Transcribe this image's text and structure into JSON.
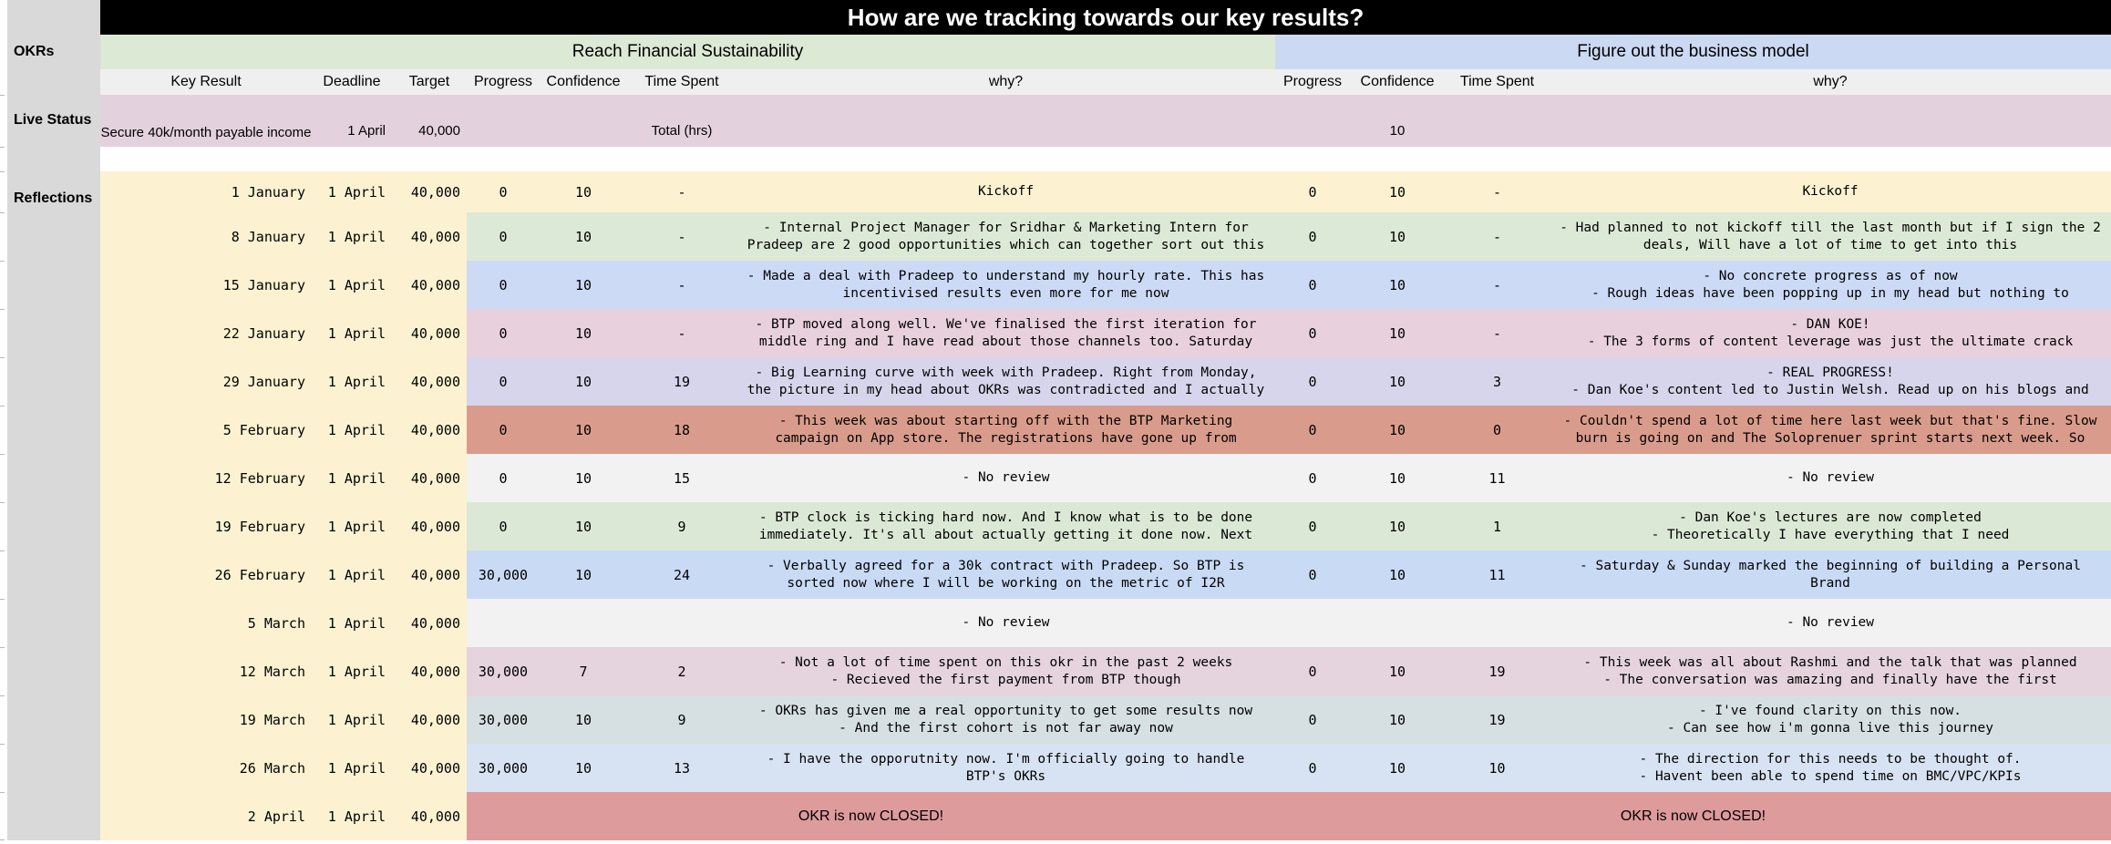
{
  "title": "How are we tracking towards our key results?",
  "sidebar": {
    "okrs": "OKRs",
    "live_status": "Live Status",
    "reflections": "Reflections"
  },
  "okrs": [
    {
      "name": "Reach Financial Sustainability",
      "color": "#DCE9D5"
    },
    {
      "name": "Figure out the business model",
      "color": "#CCD9F2"
    }
  ],
  "left_columns": {
    "key_result": "Key Result",
    "deadline": "Deadline",
    "target": "Target"
  },
  "okr_columns": {
    "progress": "Progress",
    "confidence": "Confidence",
    "time_spent": "Time Spent",
    "why": "why?"
  },
  "live_status": {
    "key_result": "Secure 40k/month payable income",
    "deadline": "1 April",
    "target": "40,000",
    "okr1": {
      "progress": "",
      "confidence": "",
      "time_spent": "Total (hrs)",
      "why": ""
    },
    "okr2": {
      "progress": "",
      "confidence": "10",
      "time_spent": "",
      "why": ""
    }
  },
  "colors": {
    "sidebar": "#D9D9D9",
    "title_bar": "#000000",
    "title_text": "#FFFFFF",
    "header_row": "#EFEFEF",
    "live_row": "#E3D2DD",
    "left_block": "#FCF2D1"
  },
  "reflections": [
    {
      "date": "1 January",
      "deadline": "1 April",
      "target": "40,000",
      "color": "#FCF2D1",
      "okr1": {
        "progress": "0",
        "confidence": "10",
        "time_spent": "-",
        "why": [
          "Kickoff"
        ]
      },
      "okr2": {
        "progress": "0",
        "confidence": "10",
        "time_spent": "-",
        "why": [
          "Kickoff"
        ]
      }
    },
    {
      "date": "8 January",
      "deadline": "1 April",
      "target": "40,000",
      "color": "#DCE9D6",
      "okr1": {
        "progress": "0",
        "confidence": "10",
        "time_spent": "-",
        "why": [
          "- Internal Project Manager for Sridhar & Marketing Intern for",
          "Pradeep are 2 good opportunities which can together sort out this"
        ]
      },
      "okr2": {
        "progress": "0",
        "confidence": "10",
        "time_spent": "-",
        "why": [
          "- Had planned to not kickoff till the last month but if I sign the 2",
          "deals, Will have a lot of time to get into this"
        ]
      }
    },
    {
      "date": "15 January",
      "deadline": "1 April",
      "target": "40,000",
      "color": "#CCDAF5",
      "okr1": {
        "progress": "0",
        "confidence": "10",
        "time_spent": "-",
        "why": [
          "- Made a deal with Pradeep to understand my hourly rate. This has",
          "incentivised results even more for me now"
        ]
      },
      "okr2": {
        "progress": "0",
        "confidence": "10",
        "time_spent": "-",
        "why": [
          "- No concrete progress as of now",
          "- Rough ideas have been popping up in my head but nothing to"
        ]
      }
    },
    {
      "date": "22 January",
      "deadline": "1 April",
      "target": "40,000",
      "color": "#E8D1DC",
      "okr1": {
        "progress": "0",
        "confidence": "10",
        "time_spent": "-",
        "why": [
          "- BTP moved along well. We've finalised the first iteration for",
          "middle ring and I have read about those channels too. Saturday"
        ]
      },
      "okr2": {
        "progress": "0",
        "confidence": "10",
        "time_spent": "-",
        "why": [
          "- DAN KOE!",
          "- The 3 forms of content leverage was just the ultimate crack"
        ]
      }
    },
    {
      "date": "29 January",
      "deadline": "1 April",
      "target": "40,000",
      "color": "#D7D5EC",
      "okr1": {
        "progress": "0",
        "confidence": "10",
        "time_spent": "19",
        "why": [
          "- Big Learning curve with week with Pradeep. Right from Monday,",
          "the picture in my head about OKRs was contradicted and I actually"
        ]
      },
      "okr2": {
        "progress": "0",
        "confidence": "10",
        "time_spent": "3",
        "why": [
          "- REAL PROGRESS!",
          "- Dan Koe's content led to Justin Welsh. Read up on his blogs and"
        ]
      }
    },
    {
      "date": "5 February",
      "deadline": "1 April",
      "target": "40,000",
      "color": "#D99C8C",
      "okr1": {
        "progress": "0",
        "confidence": "10",
        "time_spent": "18",
        "why": [
          "- This week was about starting off with the BTP Marketing",
          "campaign on App store. The registrations have gone up from"
        ]
      },
      "okr2": {
        "progress": "0",
        "confidence": "10",
        "time_spent": "0",
        "why": [
          "- Couldn't spend a lot of time here last week but that's fine. Slow",
          "burn is going on and The Soloprenuer sprint starts next week. So"
        ]
      }
    },
    {
      "date": "12 February",
      "deadline": "1 April",
      "target": "40,000",
      "color": "#F2F2F2",
      "okr1": {
        "progress": "0",
        "confidence": "10",
        "time_spent": "15",
        "why": [
          "- No review"
        ]
      },
      "okr2": {
        "progress": "0",
        "confidence": "10",
        "time_spent": "11",
        "why": [
          "- No review"
        ]
      }
    },
    {
      "date": "19 February",
      "deadline": "1 April",
      "target": "40,000",
      "color": "#DBE8D5",
      "okr1": {
        "progress": "0",
        "confidence": "10",
        "time_spent": "9",
        "why": [
          "- BTP clock is ticking hard now. And I know what is to be done",
          "immediately. It's all about actually getting it done now. Next"
        ]
      },
      "okr2": {
        "progress": "0",
        "confidence": "10",
        "time_spent": "1",
        "why": [
          "- Dan Koe's lectures are now completed",
          "- Theoretically I have everything that I need"
        ]
      }
    },
    {
      "date": "26 February",
      "deadline": "1 April",
      "target": "40,000",
      "color": "#C9DAF5",
      "okr1": {
        "progress": "30,000",
        "confidence": "10",
        "time_spent": "24",
        "why": [
          "- Verbally agreed for a 30k contract with Pradeep. So BTP is",
          "sorted now where I will be working on the metric of I2R"
        ]
      },
      "okr2": {
        "progress": "0",
        "confidence": "10",
        "time_spent": "11",
        "why": [
          "- Saturday & Sunday marked the beginning of building a Personal",
          "Brand"
        ]
      }
    },
    {
      "date": "5 March",
      "deadline": "1 April",
      "target": "40,000",
      "color": "#F2F2F2",
      "okr1": {
        "progress": "",
        "confidence": "",
        "time_spent": "",
        "why": [
          "- No review"
        ]
      },
      "okr2": {
        "progress": "",
        "confidence": "",
        "time_spent": "",
        "why": [
          "- No review"
        ]
      }
    },
    {
      "date": "12 March",
      "deadline": "1 April",
      "target": "40,000",
      "color": "#E5D3DD",
      "okr1": {
        "progress": "30,000",
        "confidence": "7",
        "time_spent": "2",
        "why": [
          "- Not a lot of time spent on this okr in the past 2 weeks",
          "- Recieved the first payment from BTP though"
        ]
      },
      "okr2": {
        "progress": "0",
        "confidence": "10",
        "time_spent": "19",
        "why": [
          "- This week was all about Rashmi and the talk that was planned",
          "- The conversation was amazing and finally have the first"
        ]
      }
    },
    {
      "date": "19 March",
      "deadline": "1 April",
      "target": "40,000",
      "color": "#D6DFE2",
      "okr1": {
        "progress": "30,000",
        "confidence": "10",
        "time_spent": "9",
        "why": [
          "- OKRs has given me a real opportunity to get some results now",
          "- And the first cohort is not far away now"
        ]
      },
      "okr2": {
        "progress": "0",
        "confidence": "10",
        "time_spent": "19",
        "why": [
          "- I've found clarity on this now.",
          "- Can see how i'm gonna live this journey"
        ]
      }
    },
    {
      "date": "26 March",
      "deadline": "1 April",
      "target": "40,000",
      "color": "#D7E3F2",
      "okr1": {
        "progress": "30,000",
        "confidence": "10",
        "time_spent": "13",
        "why": [
          "- I have the opporutnity now. I'm officially going to handle",
          "BTP's OKRs"
        ]
      },
      "okr2": {
        "progress": "0",
        "confidence": "10",
        "time_spent": "10",
        "why": [
          "- The direction for this needs to be thought of.",
          "- Havent been able to spend time on BMC/VPC/KPIs"
        ]
      }
    },
    {
      "date": "2 April",
      "deadline": "1 April",
      "target": "40,000",
      "color": "#DE9B9B",
      "okr1": {
        "merged": true,
        "why": [
          "OKR is now CLOSED!"
        ]
      },
      "okr2": {
        "merged": true,
        "why": [
          "OKR is now CLOSED!"
        ]
      }
    }
  ]
}
